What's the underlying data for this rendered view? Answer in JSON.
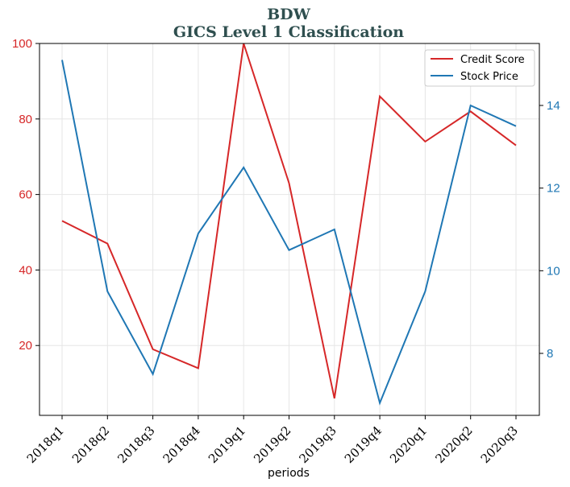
{
  "chart_data": {
    "type": "line",
    "title": "BDW",
    "subtitle": "GICS Level 1 Classification",
    "xlabel": "periods",
    "categories": [
      "2018q1",
      "2018q2",
      "2018q3",
      "2018q4",
      "2019q1",
      "2019q2",
      "2019q3",
      "2019q4",
      "2020q1",
      "2020q2",
      "2020q3"
    ],
    "series": [
      {
        "name": "Credit Score",
        "axis": "left",
        "color": "#d62728",
        "values": [
          53,
          47,
          19,
          14,
          100,
          63,
          6,
          86,
          74,
          82,
          73
        ]
      },
      {
        "name": "Stock Price",
        "axis": "right",
        "color": "#1f77b4",
        "values": [
          15.1,
          9.5,
          7.5,
          10.9,
          12.5,
          10.5,
          11.0,
          6.8,
          9.5,
          14.0,
          13.5
        ]
      }
    ],
    "left_axis": {
      "ylim": [
        1.5,
        100
      ],
      "ticks": [
        20,
        40,
        60,
        80,
        100
      ],
      "tick_color": "#d62728"
    },
    "right_axis": {
      "ylim": [
        6.5,
        15.5
      ],
      "ticks": [
        8,
        10,
        12,
        14
      ],
      "tick_color": "#1f77b4"
    },
    "grid": true,
    "legend_position": "top-right"
  }
}
